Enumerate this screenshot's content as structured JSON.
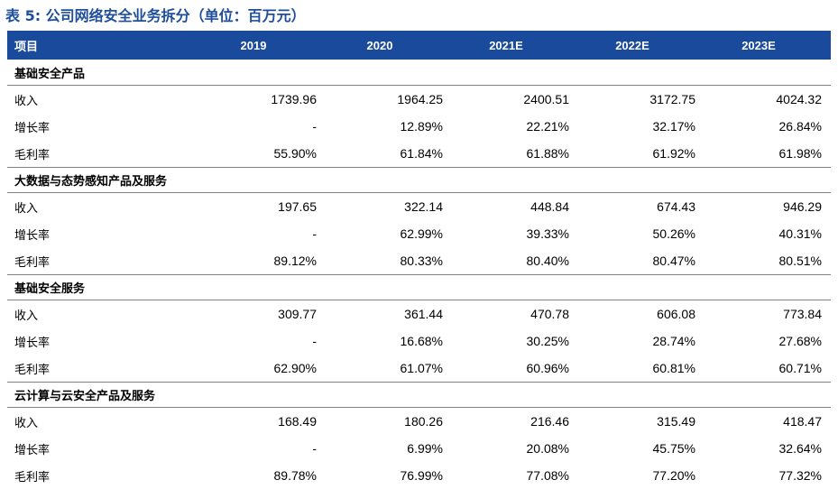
{
  "title": "表 5: 公司网络安全业务拆分（单位：百万元）",
  "header": {
    "label": "项目",
    "years": [
      "2019",
      "2020",
      "2021E",
      "2022E",
      "2023E"
    ]
  },
  "sections": [
    {
      "name": "基础安全产品",
      "rows": [
        {
          "label": "收入",
          "values": [
            "1739.96",
            "1964.25",
            "2400.51",
            "3172.75",
            "4024.32"
          ]
        },
        {
          "label": "增长率",
          "values": [
            "-",
            "12.89%",
            "22.21%",
            "32.17%",
            "26.84%"
          ]
        },
        {
          "label": "毛利率",
          "values": [
            "55.90%",
            "61.84%",
            "61.88%",
            "61.92%",
            "61.98%"
          ]
        }
      ]
    },
    {
      "name": "大数据与态势感知产品及服务",
      "rows": [
        {
          "label": "收入",
          "values": [
            "197.65",
            "322.14",
            "448.84",
            "674.43",
            "946.29"
          ]
        },
        {
          "label": "增长率",
          "values": [
            "-",
            "62.99%",
            "39.33%",
            "50.26%",
            "40.31%"
          ]
        },
        {
          "label": "毛利率",
          "values": [
            "89.12%",
            "80.33%",
            "80.40%",
            "80.47%",
            "80.51%"
          ]
        }
      ]
    },
    {
      "name": "基础安全服务",
      "rows": [
        {
          "label": "收入",
          "values": [
            "309.77",
            "361.44",
            "470.78",
            "606.08",
            "773.84"
          ]
        },
        {
          "label": "增长率",
          "values": [
            "-",
            "16.68%",
            "30.25%",
            "28.74%",
            "27.68%"
          ]
        },
        {
          "label": "毛利率",
          "values": [
            "62.90%",
            "61.07%",
            "60.96%",
            "60.81%",
            "60.71%"
          ]
        }
      ]
    },
    {
      "name": "云计算与云安全产品及服务",
      "rows": [
        {
          "label": "收入",
          "values": [
            "168.49",
            "180.26",
            "216.46",
            "315.49",
            "418.47"
          ]
        },
        {
          "label": "增长率",
          "values": [
            "-",
            "6.99%",
            "20.08%",
            "45.75%",
            "32.64%"
          ]
        },
        {
          "label": "毛利率",
          "values": [
            "89.78%",
            "76.99%",
            "77.08%",
            "77.20%",
            "77.32%"
          ]
        }
      ]
    }
  ],
  "colors": {
    "title": "#1f4e9c",
    "header_bg": "#1a4a9b",
    "header_text": "#ffffff",
    "rule": "#7f7f7f"
  }
}
